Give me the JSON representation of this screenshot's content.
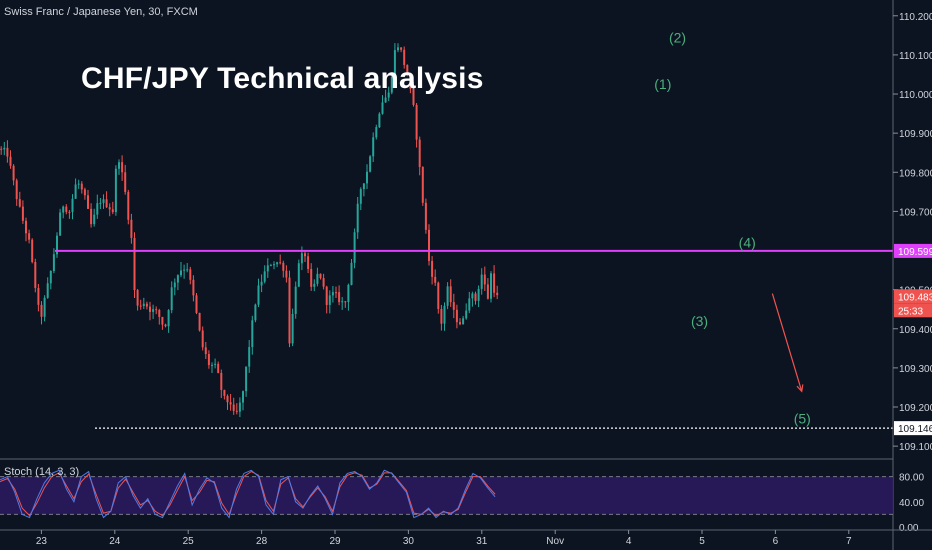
{
  "symbol_label": "Swiss Franc / Japanese Yen, 30, FXCM",
  "headline": "CHF/JPY Technical analysis",
  "stoch_label": "Stoch (14, 3, 3)",
  "colors": {
    "background": "#0c1421",
    "up_candle": "#26a69a",
    "down_candle": "#ef5350",
    "resistance_line": "#e040fb",
    "target_line": "#ffffff",
    "wave_label": "#4caf7d",
    "arrow": "#ef5350",
    "stoch_band": "#2a1a5e",
    "stoch_k": "#4f7be8",
    "stoch_d": "#ef5350"
  },
  "chart_data": [
    {
      "type": "candlestick",
      "title": "Swiss Franc / Japanese Yen, 30, FXCM",
      "x_tick_labels": [
        "23",
        "24",
        "25",
        "28",
        "29",
        "30",
        "31",
        "Nov",
        "4",
        "5",
        "6",
        "7"
      ],
      "y_tick_labels": [
        "110.200",
        "110.100",
        "110.000",
        "109.900",
        "109.800",
        "109.700",
        "109.500",
        "109.400",
        "109.300",
        "109.200",
        "109.100"
      ],
      "ylim": [
        109.085,
        110.225
      ],
      "price_labels": [
        "109.599",
        "109.483",
        "25:33",
        "109.146"
      ],
      "horizontal_levels": [
        {
          "name": "resistance",
          "value": 109.599
        },
        {
          "name": "target",
          "value": 109.146
        }
      ],
      "current_price": 109.483,
      "wave_labels": [
        "(1)",
        "(2)",
        "(3)",
        "(4)",
        "(5)"
      ],
      "wave_points": [
        {
          "label": "(1)",
          "day": 31.05,
          "price": 110.025
        },
        {
          "label": "(2)",
          "day": 31.25,
          "price": 110.145
        },
        {
          "label": "(3)",
          "day": 31.55,
          "price": 109.42
        },
        {
          "label": "(4)",
          "day": 32.2,
          "price": 109.62
        },
        {
          "label": "(5)",
          "day": 32.95,
          "price": 109.17
        }
      ],
      "forecast_arrow": {
        "from": {
          "day": 32.55,
          "price": 109.49
        },
        "to": {
          "day": 32.95,
          "price": 109.24
        }
      },
      "price_path": [
        [
          22.0,
          109.86
        ],
        [
          22.15,
          109.85
        ],
        [
          22.3,
          109.72
        ],
        [
          22.45,
          109.62
        ],
        [
          22.6,
          109.42
        ],
        [
          22.75,
          109.55
        ],
        [
          22.9,
          109.72
        ],
        [
          23.0,
          109.7
        ],
        [
          23.1,
          109.78
        ],
        [
          23.2,
          109.74
        ],
        [
          23.3,
          109.66
        ],
        [
          23.4,
          109.73
        ],
        [
          23.5,
          109.72
        ],
        [
          23.6,
          109.7
        ],
        [
          23.65,
          109.86
        ],
        [
          23.75,
          109.76
        ],
        [
          23.85,
          109.62
        ],
        [
          23.9,
          109.45
        ],
        [
          24.0,
          109.47
        ],
        [
          24.1,
          109.45
        ],
        [
          24.2,
          109.44
        ],
        [
          24.3,
          109.4
        ],
        [
          24.4,
          109.51
        ],
        [
          24.5,
          109.55
        ],
        [
          24.6,
          109.56
        ],
        [
          24.7,
          109.47
        ],
        [
          24.8,
          109.36
        ],
        [
          24.9,
          109.31
        ],
        [
          25.0,
          109.3
        ],
        [
          25.1,
          109.22
        ],
        [
          25.2,
          109.21
        ],
        [
          25.25,
          109.17
        ],
        [
          25.35,
          109.22
        ],
        [
          25.45,
          109.36
        ],
        [
          25.55,
          109.49
        ],
        [
          25.65,
          109.54
        ],
        [
          25.75,
          109.57
        ],
        [
          25.85,
          109.57
        ],
        [
          25.95,
          109.55
        ],
        [
          26.0,
          109.36
        ],
        [
          26.1,
          109.55
        ],
        [
          26.2,
          109.6
        ],
        [
          26.3,
          109.49
        ],
        [
          26.4,
          109.55
        ],
        [
          26.5,
          109.47
        ],
        [
          26.6,
          109.49
        ],
        [
          26.75,
          109.46
        ],
        [
          26.85,
          109.58
        ],
        [
          26.95,
          109.75
        ],
        [
          27.05,
          109.8
        ],
        [
          27.15,
          109.9
        ],
        [
          27.25,
          109.98
        ],
        [
          27.35,
          110.0
        ],
        [
          27.45,
          110.13
        ],
        [
          27.5,
          110.12
        ],
        [
          27.6,
          110.05
        ],
        [
          27.7,
          109.95
        ],
        [
          27.8,
          109.75
        ],
        [
          27.9,
          109.57
        ],
        [
          28.0,
          109.5
        ],
        [
          28.05,
          109.4
        ],
        [
          28.15,
          109.5
        ],
        [
          28.25,
          109.43
        ],
        [
          28.35,
          109.41
        ],
        [
          28.45,
          109.49
        ],
        [
          28.55,
          109.47
        ],
        [
          28.6,
          109.55
        ],
        [
          28.7,
          109.48
        ],
        [
          28.75,
          109.55
        ],
        [
          28.8,
          109.48
        ]
      ]
    },
    {
      "type": "line",
      "title": "Stoch (14, 3, 3)",
      "y_tick_labels": [
        "80.00",
        "40.00",
        "0.00"
      ],
      "ylim": [
        0,
        100
      ],
      "band": [
        20,
        80
      ],
      "series": [
        {
          "name": "%K",
          "values": [
            75,
            80,
            55,
            20,
            15,
            45,
            70,
            85,
            90,
            60,
            40,
            80,
            88,
            45,
            15,
            25,
            70,
            80,
            50,
            30,
            45,
            20,
            15,
            40,
            65,
            85,
            35,
            60,
            78,
            70,
            30,
            15,
            60,
            85,
            90,
            80,
            35,
            20,
            75,
            80,
            40,
            30,
            50,
            65,
            45,
            20,
            70,
            85,
            88,
            80,
            60,
            70,
            90,
            85,
            70,
            55,
            15,
            20,
            30,
            15,
            25,
            20,
            30,
            60,
            85,
            78,
            62,
            48
          ]
        },
        {
          "name": "%D",
          "values": [
            72,
            77,
            60,
            30,
            18,
            38,
            62,
            80,
            86,
            65,
            45,
            72,
            84,
            52,
            22,
            25,
            62,
            76,
            55,
            35,
            42,
            25,
            18,
            35,
            58,
            80,
            42,
            55,
            74,
            72,
            38,
            20,
            52,
            80,
            88,
            82,
            42,
            25,
            68,
            78,
            45,
            32,
            48,
            62,
            48,
            25,
            64,
            82,
            86,
            82,
            62,
            68,
            86,
            86,
            72,
            58,
            22,
            20,
            28,
            18,
            24,
            22,
            28,
            55,
            80,
            80,
            65,
            52
          ]
        }
      ]
    }
  ]
}
